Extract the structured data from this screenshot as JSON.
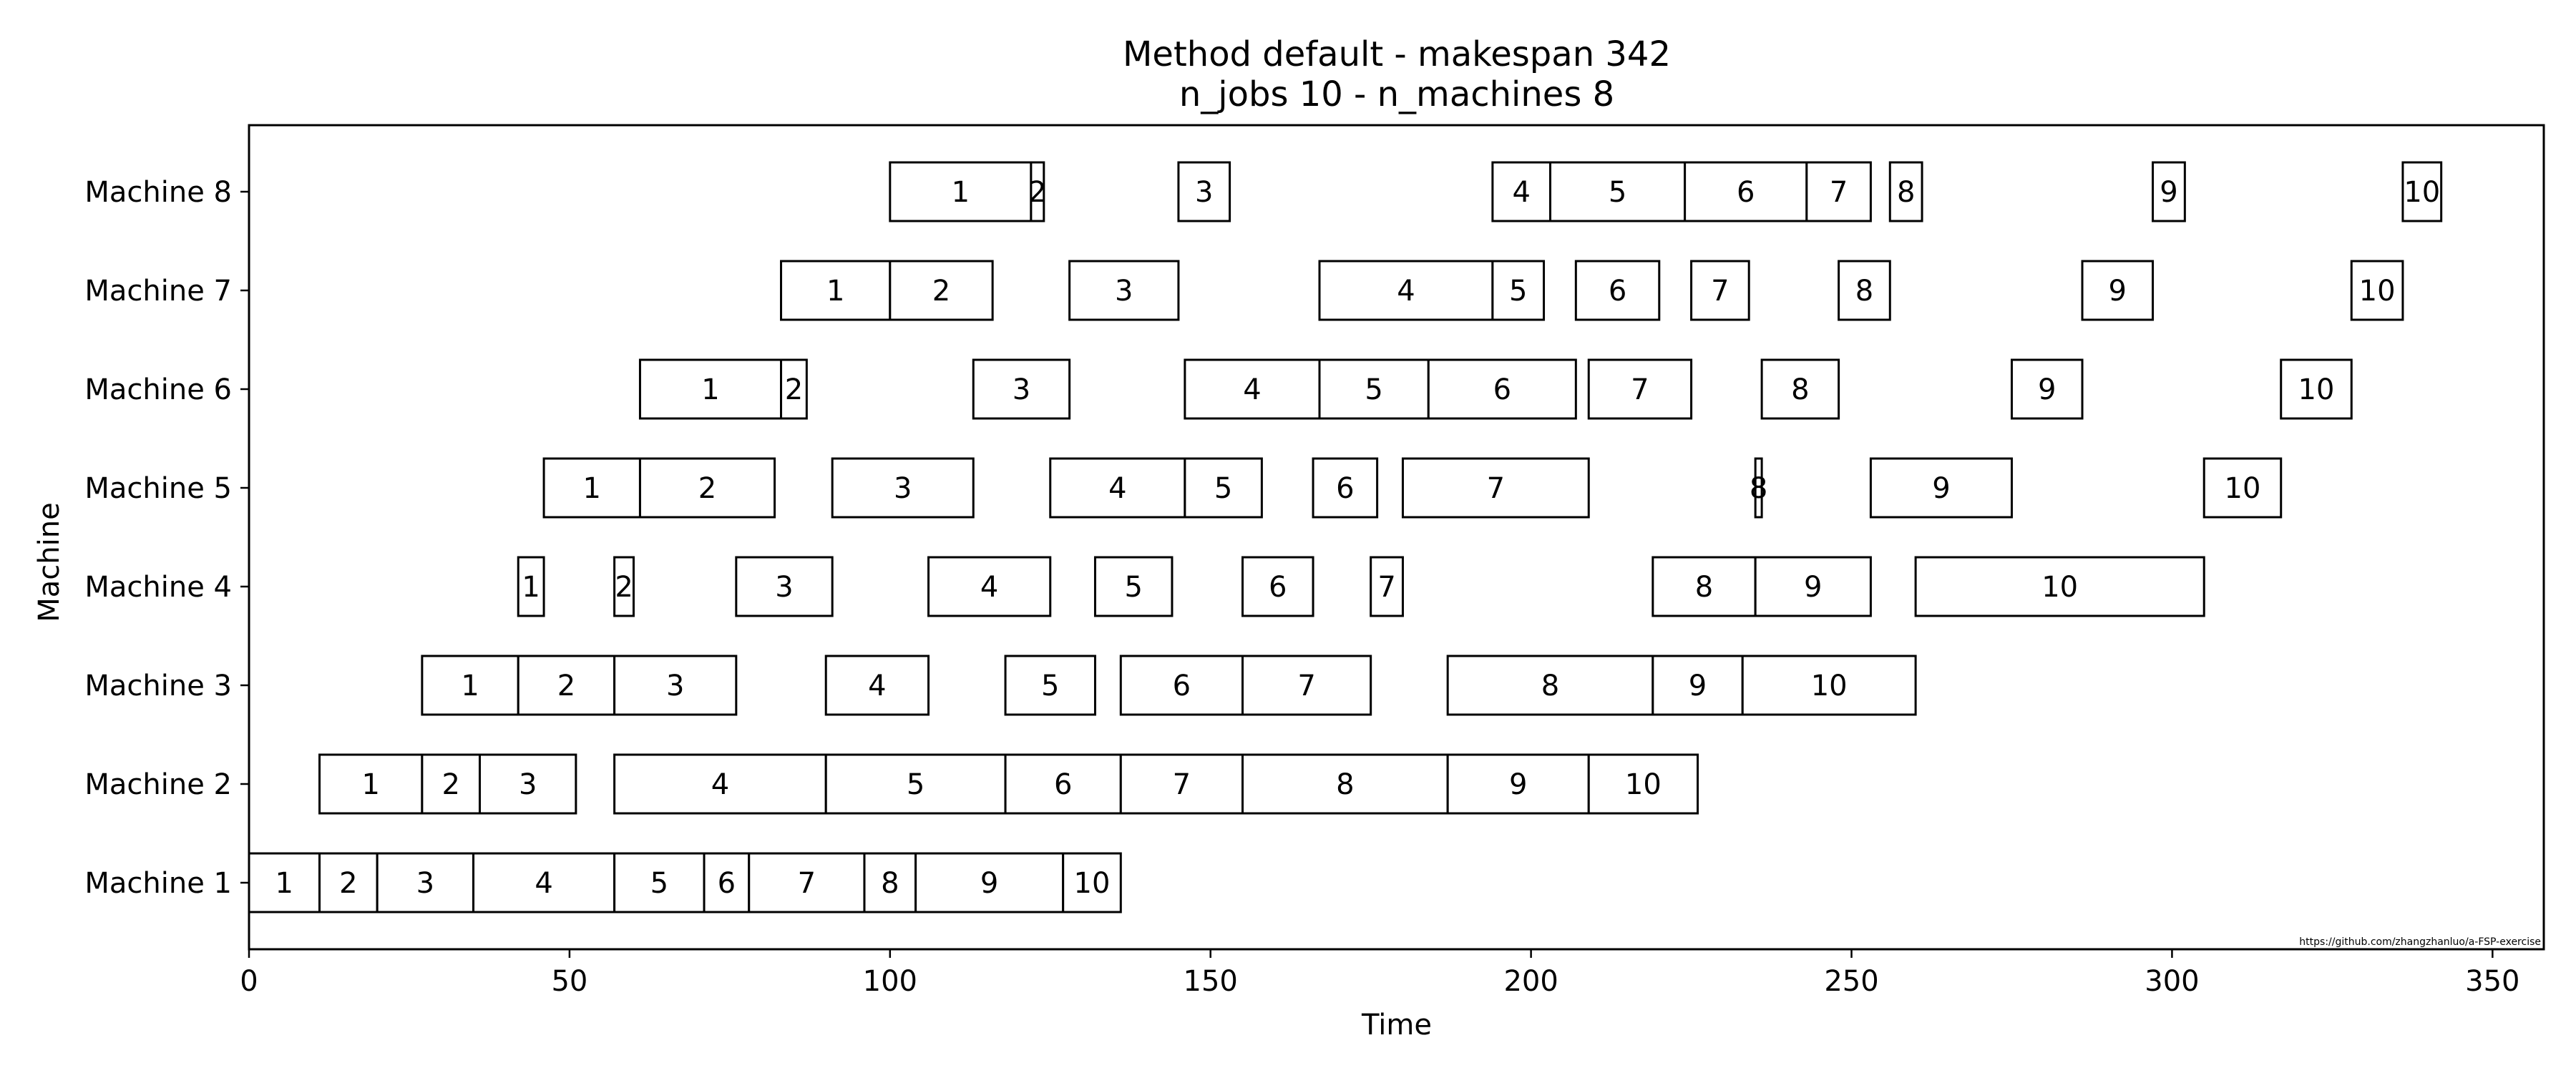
{
  "chart_data": {
    "type": "gantt",
    "title": "Method default - makespan 342",
    "subtitle": "n_jobs 10 - n_machines 8",
    "xlabel": "Time",
    "ylabel": "Machine",
    "xlim": [
      0,
      358
    ],
    "x_ticks": [
      0,
      50,
      100,
      150,
      200,
      250,
      300,
      350
    ],
    "watermark": "https://github.com/zhangzhanluo/a-FSP-exercise",
    "machines": [
      {
        "name": "Machine 1",
        "tasks": [
          {
            "job": "1",
            "start": 0,
            "end": 11
          },
          {
            "job": "2",
            "start": 11,
            "end": 20
          },
          {
            "job": "3",
            "start": 20,
            "end": 35
          },
          {
            "job": "4",
            "start": 35,
            "end": 57
          },
          {
            "job": "5",
            "start": 57,
            "end": 71
          },
          {
            "job": "6",
            "start": 71,
            "end": 78
          },
          {
            "job": "7",
            "start": 78,
            "end": 96
          },
          {
            "job": "8",
            "start": 96,
            "end": 104
          },
          {
            "job": "9",
            "start": 104,
            "end": 127
          },
          {
            "job": "10",
            "start": 127,
            "end": 136
          }
        ]
      },
      {
        "name": "Machine 2",
        "tasks": [
          {
            "job": "1",
            "start": 11,
            "end": 27
          },
          {
            "job": "2",
            "start": 27,
            "end": 36
          },
          {
            "job": "3",
            "start": 36,
            "end": 51
          },
          {
            "job": "4",
            "start": 57,
            "end": 90
          },
          {
            "job": "5",
            "start": 90,
            "end": 118
          },
          {
            "job": "6",
            "start": 118,
            "end": 136
          },
          {
            "job": "7",
            "start": 136,
            "end": 155
          },
          {
            "job": "8",
            "start": 155,
            "end": 187
          },
          {
            "job": "9",
            "start": 187,
            "end": 209
          },
          {
            "job": "10",
            "start": 209,
            "end": 226
          }
        ]
      },
      {
        "name": "Machine 3",
        "tasks": [
          {
            "job": "1",
            "start": 27,
            "end": 42
          },
          {
            "job": "2",
            "start": 42,
            "end": 57
          },
          {
            "job": "3",
            "start": 57,
            "end": 76
          },
          {
            "job": "4",
            "start": 90,
            "end": 106
          },
          {
            "job": "5",
            "start": 118,
            "end": 132
          },
          {
            "job": "6",
            "start": 136,
            "end": 155
          },
          {
            "job": "7",
            "start": 155,
            "end": 175
          },
          {
            "job": "8",
            "start": 187,
            "end": 219
          },
          {
            "job": "9",
            "start": 219,
            "end": 233
          },
          {
            "job": "10",
            "start": 233,
            "end": 260
          }
        ]
      },
      {
        "name": "Machine 4",
        "tasks": [
          {
            "job": "1",
            "start": 42,
            "end": 46
          },
          {
            "job": "2",
            "start": 57,
            "end": 60
          },
          {
            "job": "3",
            "start": 76,
            "end": 91
          },
          {
            "job": "4",
            "start": 106,
            "end": 125
          },
          {
            "job": "5",
            "start": 132,
            "end": 144
          },
          {
            "job": "6",
            "start": 155,
            "end": 166
          },
          {
            "job": "7",
            "start": 175,
            "end": 180
          },
          {
            "job": "8",
            "start": 219,
            "end": 235
          },
          {
            "job": "9",
            "start": 235,
            "end": 253
          },
          {
            "job": "10",
            "start": 260,
            "end": 305
          }
        ]
      },
      {
        "name": "Machine 5",
        "tasks": [
          {
            "job": "1",
            "start": 46,
            "end": 61
          },
          {
            "job": "2",
            "start": 61,
            "end": 82
          },
          {
            "job": "3",
            "start": 91,
            "end": 113
          },
          {
            "job": "4",
            "start": 125,
            "end": 146
          },
          {
            "job": "5",
            "start": 146,
            "end": 158
          },
          {
            "job": "6",
            "start": 166,
            "end": 176
          },
          {
            "job": "7",
            "start": 180,
            "end": 209
          },
          {
            "job": "8",
            "start": 235,
            "end": 236
          },
          {
            "job": "9",
            "start": 253,
            "end": 275
          },
          {
            "job": "10",
            "start": 305,
            "end": 317
          }
        ]
      },
      {
        "name": "Machine 6",
        "tasks": [
          {
            "job": "1",
            "start": 61,
            "end": 83
          },
          {
            "job": "2",
            "start": 83,
            "end": 87
          },
          {
            "job": "3",
            "start": 113,
            "end": 128
          },
          {
            "job": "4",
            "start": 146,
            "end": 167
          },
          {
            "job": "5",
            "start": 167,
            "end": 184
          },
          {
            "job": "6",
            "start": 184,
            "end": 207
          },
          {
            "job": "7",
            "start": 209,
            "end": 225
          },
          {
            "job": "8",
            "start": 236,
            "end": 248
          },
          {
            "job": "9",
            "start": 275,
            "end": 286
          },
          {
            "job": "10",
            "start": 317,
            "end": 328
          }
        ]
      },
      {
        "name": "Machine 7",
        "tasks": [
          {
            "job": "1",
            "start": 83,
            "end": 100
          },
          {
            "job": "2",
            "start": 100,
            "end": 116
          },
          {
            "job": "3",
            "start": 128,
            "end": 145
          },
          {
            "job": "4",
            "start": 167,
            "end": 194
          },
          {
            "job": "5",
            "start": 194,
            "end": 202
          },
          {
            "job": "6",
            "start": 207,
            "end": 220
          },
          {
            "job": "7",
            "start": 225,
            "end": 234
          },
          {
            "job": "8",
            "start": 248,
            "end": 256
          },
          {
            "job": "9",
            "start": 286,
            "end": 297
          },
          {
            "job": "10",
            "start": 328,
            "end": 336
          }
        ]
      },
      {
        "name": "Machine 8",
        "tasks": [
          {
            "job": "1",
            "start": 100,
            "end": 122
          },
          {
            "job": "2",
            "start": 122,
            "end": 124
          },
          {
            "job": "3",
            "start": 145,
            "end": 153
          },
          {
            "job": "4",
            "start": 194,
            "end": 203
          },
          {
            "job": "5",
            "start": 203,
            "end": 224
          },
          {
            "job": "6",
            "start": 224,
            "end": 243
          },
          {
            "job": "7",
            "start": 243,
            "end": 253
          },
          {
            "job": "8",
            "start": 256,
            "end": 261
          },
          {
            "job": "9",
            "start": 297,
            "end": 302
          },
          {
            "job": "10",
            "start": 336,
            "end": 342
          }
        ]
      }
    ]
  }
}
